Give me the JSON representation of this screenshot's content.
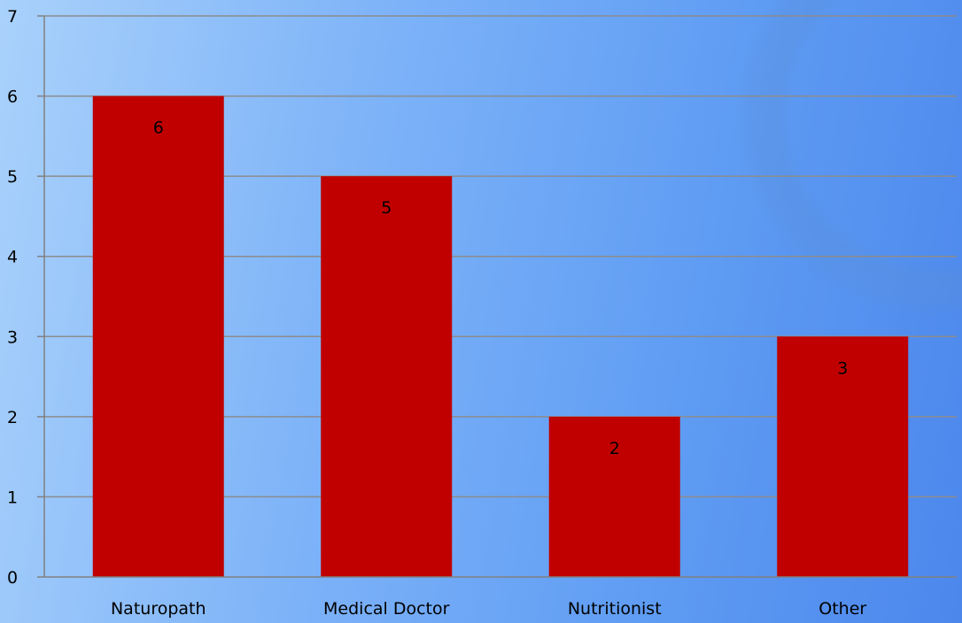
{
  "chart_data": {
    "type": "bar",
    "categories": [
      "Naturopath",
      "Medical Doctor",
      "Nutritionist",
      "Other"
    ],
    "values": [
      6,
      5,
      2,
      3
    ],
    "data_labels": [
      "6",
      "5",
      "2",
      "3"
    ],
    "yticks": [
      "0",
      "1",
      "2",
      "3",
      "4",
      "5",
      "6",
      "7"
    ],
    "ylim": [
      0,
      7
    ],
    "grid": true,
    "bar_color": "#c00000",
    "title": "",
    "xlabel": "",
    "ylabel": ""
  }
}
